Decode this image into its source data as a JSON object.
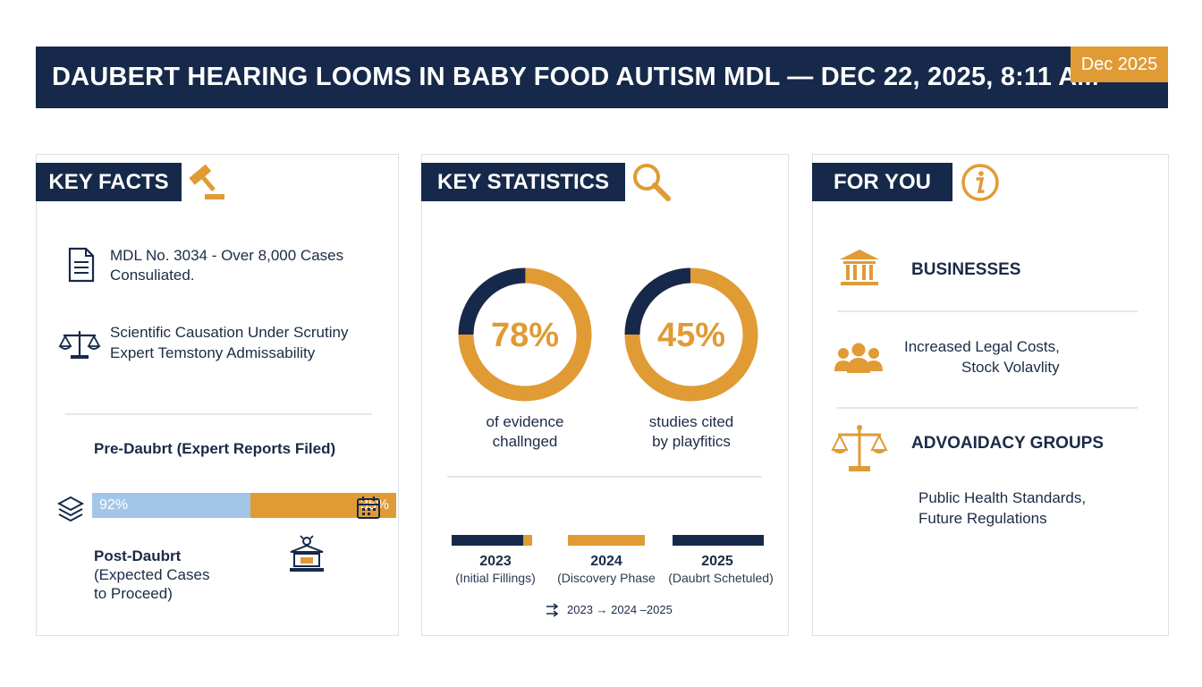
{
  "header": {
    "title": "DAUBERT HEARING LOOMS IN BABY FOOD AUTISM MDL — DEC 22, 2025, 8:11 AM",
    "badge": "Dec 2025"
  },
  "key_facts": {
    "heading": "KEY FACTS",
    "fact1": [
      "MDL No. 3034 - Over 8,000 Cases",
      "Consuliated."
    ],
    "fact2": [
      "Scientific Causation Under Scrutiny",
      "Expert Temstony Admissability"
    ],
    "pre_label": "Pre-Daubrt (Expert Reports Filed)",
    "bar": {
      "left_label": "92%",
      "right_label": "35%",
      "left_value": 0.5
    },
    "post_label": [
      "Post-Daubrt",
      "(Expected Cases",
      "to Proceed)"
    ]
  },
  "key_stats": {
    "heading": "KEY STATISTICS",
    "rings": [
      {
        "value": 78,
        "label": "78%",
        "caption": [
          "of evidence",
          "challnged"
        ]
      },
      {
        "value": 45,
        "label": "45%",
        "caption": [
          "studies cited",
          "by playfitics"
        ]
      }
    ],
    "timeline": [
      {
        "year": "2023",
        "sub": "(Initial Fillings)"
      },
      {
        "year": "2024",
        "sub": "(Discovery Phase"
      },
      {
        "year": "2025",
        "sub": "(Daubrt Schetuled)"
      }
    ],
    "timeline_caption": "2023 → 2024 –2025"
  },
  "for_you": {
    "heading": "FOR YOU",
    "businesses": "BUSINESSES",
    "business_impact": [
      "Increased Legal Costs,",
      "Stock Volavlity"
    ],
    "groups": "ADVOAIDACY GROUPS",
    "group_impact": [
      "Public Health Standards,",
      "Future Regulations"
    ]
  },
  "colors": {
    "navy": "#16294a",
    "gold": "#e09b35",
    "light_blue": "#a3c6e8"
  }
}
